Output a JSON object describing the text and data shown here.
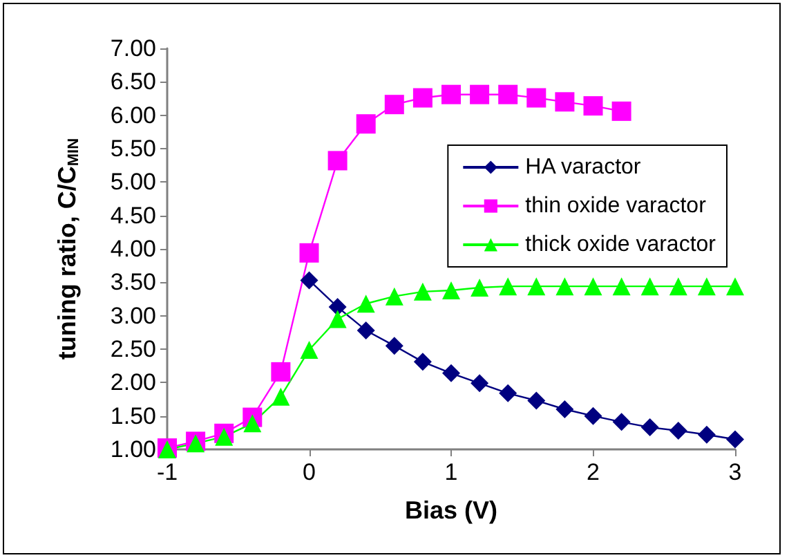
{
  "chart_data": {
    "type": "line",
    "xlabel": "Bias (V)",
    "ylabel": "tuning ratio, C/C$_{MIN}$",
    "xlim": [
      -1,
      3
    ],
    "xticks": [
      -1,
      0,
      1,
      2,
      3
    ],
    "ylim": [
      1,
      7
    ],
    "yticks": [
      {
        "value": 1,
        "label": "1.00"
      },
      {
        "value": 1.5,
        "label": "1.50"
      },
      {
        "value": 2,
        "label": "2.00"
      },
      {
        "value": 2.5,
        "label": "2.50"
      },
      {
        "value": 3,
        "label": "3.00"
      },
      {
        "value": 3.5,
        "label": "3.50"
      },
      {
        "value": 4,
        "label": "4.00"
      },
      {
        "value": 4.5,
        "label": "4.50"
      },
      {
        "value": 5,
        "label": "5.00"
      },
      {
        "value": 5.5,
        "label": "5.50"
      },
      {
        "value": 6,
        "label": "6.00"
      },
      {
        "value": 6.5,
        "label": "6.50"
      },
      {
        "value": 7,
        "label": "7.00"
      }
    ],
    "grid": false,
    "legend": "right",
    "line_style": "solid",
    "series": [
      {
        "name": "HA varactor",
        "color": "#000080",
        "marker": "diamond",
        "x": [
          0,
          0.2,
          0.4,
          0.6,
          0.8,
          1.0,
          1.2,
          1.4,
          1.6,
          1.8,
          2.0,
          2.2,
          2.4,
          2.6,
          2.8,
          3.0
        ],
        "values": [
          3.53,
          3.13,
          2.78,
          2.55,
          2.31,
          2.14,
          1.99,
          1.84,
          1.73,
          1.6,
          1.5,
          1.41,
          1.33,
          1.28,
          1.22,
          1.15
        ]
      },
      {
        "name": "thin oxide varactor",
        "color": "#ff00ff",
        "marker": "square",
        "x": [
          -1,
          -0.8,
          -0.6,
          -0.4,
          -0.2,
          0,
          0.2,
          0.4,
          0.6,
          0.8,
          1.0,
          1.2,
          1.4,
          1.6,
          1.8,
          2.0,
          2.2
        ],
        "values": [
          1.02,
          1.12,
          1.24,
          1.48,
          2.16,
          3.94,
          5.32,
          5.87,
          6.16,
          6.26,
          6.31,
          6.31,
          6.31,
          6.26,
          6.2,
          6.14,
          6.06
        ]
      },
      {
        "name": "thick oxide varactor",
        "color": "#00ff00",
        "marker": "triangle",
        "x": [
          -1,
          -0.8,
          -0.6,
          -0.4,
          -0.2,
          0,
          0.2,
          0.4,
          0.6,
          0.8,
          1.0,
          1.2,
          1.4,
          1.6,
          1.8,
          2.0,
          2.2,
          2.4,
          2.6,
          2.8,
          3.0
        ],
        "values": [
          1.0,
          1.09,
          1.19,
          1.39,
          1.79,
          2.49,
          2.95,
          3.18,
          3.29,
          3.36,
          3.38,
          3.42,
          3.44,
          3.44,
          3.44,
          3.44,
          3.44,
          3.44,
          3.44,
          3.44,
          3.44
        ]
      }
    ]
  }
}
